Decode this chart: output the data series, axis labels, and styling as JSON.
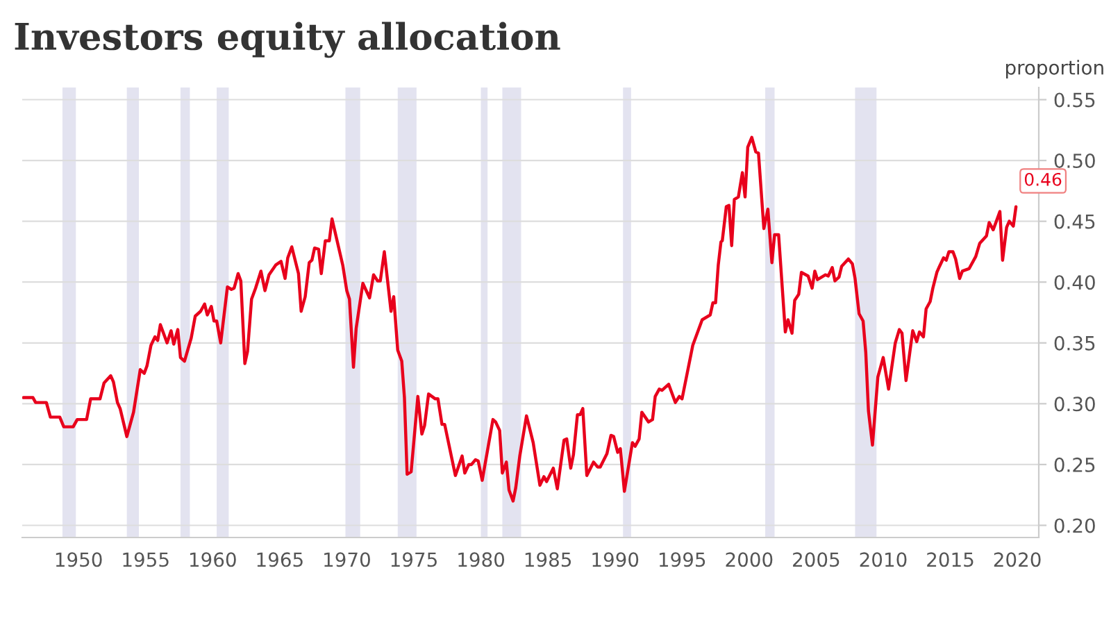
{
  "chart_data": {
    "type": "line",
    "title": "Investors equity allocation",
    "ylabel": "proportion",
    "x": [
      1945.9,
      1946.6,
      1946.8,
      1947.6,
      1947.9,
      1948.6,
      1948.9,
      1949.6,
      1949.9,
      1950.6,
      1950.9,
      1951.6,
      1951.9,
      1952.4,
      1952.6,
      1952.9,
      1953.1,
      1953.6,
      1954.1,
      1954.6,
      1954.9,
      1955.1,
      1955.4,
      1955.7,
      1955.9,
      1956.1,
      1956.6,
      1956.9,
      1957.1,
      1957.4,
      1957.6,
      1957.9,
      1958.4,
      1958.7,
      1959.1,
      1959.4,
      1959.6,
      1959.9,
      1960.1,
      1960.3,
      1960.6,
      1961.1,
      1961.4,
      1961.6,
      1961.9,
      1962.1,
      1962.4,
      1962.6,
      1962.9,
      1963.2,
      1963.6,
      1963.9,
      1964.2,
      1964.7,
      1965.1,
      1965.4,
      1965.6,
      1965.9,
      1966.4,
      1966.6,
      1966.9,
      1967.2,
      1967.4,
      1967.6,
      1967.9,
      1968.1,
      1968.4,
      1968.7,
      1968.9,
      1969.7,
      1970.0,
      1970.2,
      1970.5,
      1970.7,
      1971.2,
      1971.7,
      1972.0,
      1972.3,
      1972.5,
      1972.8,
      1973.3,
      1973.5,
      1973.8,
      1974.1,
      1974.3,
      1974.5,
      1974.8,
      1975.3,
      1975.6,
      1975.8,
      1976.1,
      1976.6,
      1976.8,
      1977.1,
      1977.3,
      1978.1,
      1978.6,
      1978.8,
      1979.1,
      1979.3,
      1979.6,
      1979.8,
      1980.1,
      1980.9,
      1981.1,
      1981.4,
      1981.6,
      1981.9,
      1982.1,
      1982.4,
      1982.6,
      1982.9,
      1983.4,
      1983.9,
      1984.4,
      1984.7,
      1984.9,
      1985.4,
      1985.7,
      1986.2,
      1986.4,
      1986.7,
      1986.9,
      1987.2,
      1987.4,
      1987.6,
      1987.9,
      1988.4,
      1988.7,
      1988.9,
      1989.4,
      1989.7,
      1989.9,
      1990.2,
      1990.4,
      1990.7,
      1991.3,
      1991.5,
      1991.8,
      1992.0,
      1992.5,
      1992.8,
      1993.0,
      1993.3,
      1993.5,
      1994.0,
      1994.5,
      1994.8,
      1995.0,
      1995.8,
      1996.5,
      1997.1,
      1997.3,
      1997.5,
      1997.7,
      1997.9,
      1998.0,
      1998.3,
      1998.5,
      1998.7,
      1998.9,
      1999.2,
      1999.5,
      1999.7,
      1999.9,
      2000.2,
      2000.5,
      2000.7,
      2001.1,
      2001.4,
      2001.7,
      2001.9,
      2002.2,
      2002.7,
      2002.9,
      2003.2,
      2003.4,
      2003.7,
      2003.9,
      2004.4,
      2004.7,
      2004.9,
      2005.1,
      2005.7,
      2005.9,
      2006.2,
      2006.4,
      2006.7,
      2006.9,
      2007.4,
      2007.7,
      2007.9,
      2008.2,
      2008.5,
      2008.7,
      2008.9,
      2009.2,
      2009.6,
      2010.0,
      2010.4,
      2010.9,
      2011.2,
      2011.4,
      2011.7,
      2012.2,
      2012.5,
      2012.7,
      2013.0,
      2013.2,
      2013.5,
      2013.7,
      2014.0,
      2014.2,
      2014.5,
      2014.7,
      2014.9,
      2015.2,
      2015.4,
      2015.7,
      2015.9,
      2016.4,
      2016.9,
      2017.2,
      2017.7,
      2017.9,
      2018.2,
      2018.4,
      2018.7,
      2018.9,
      2019.2,
      2019.4,
      2019.7,
      2019.9
    ],
    "series": [
      {
        "color": "#e8001c",
        "values": [
          0.305,
          0.305,
          0.301,
          0.301,
          0.289,
          0.289,
          0.281,
          0.281,
          0.287,
          0.287,
          0.304,
          0.304,
          0.317,
          0.323,
          0.318,
          0.301,
          0.296,
          0.273,
          0.293,
          0.328,
          0.325,
          0.331,
          0.348,
          0.355,
          0.352,
          0.365,
          0.35,
          0.36,
          0.349,
          0.361,
          0.338,
          0.335,
          0.354,
          0.372,
          0.376,
          0.382,
          0.373,
          0.38,
          0.368,
          0.368,
          0.35,
          0.396,
          0.394,
          0.395,
          0.407,
          0.401,
          0.333,
          0.343,
          0.386,
          0.395,
          0.409,
          0.393,
          0.406,
          0.414,
          0.417,
          0.403,
          0.42,
          0.429,
          0.407,
          0.376,
          0.388,
          0.416,
          0.418,
          0.428,
          0.427,
          0.407,
          0.434,
          0.434,
          0.452,
          0.414,
          0.393,
          0.386,
          0.33,
          0.362,
          0.399,
          0.387,
          0.406,
          0.401,
          0.401,
          0.425,
          0.376,
          0.388,
          0.344,
          0.335,
          0.305,
          0.242,
          0.244,
          0.306,
          0.275,
          0.282,
          0.308,
          0.304,
          0.304,
          0.283,
          0.283,
          0.241,
          0.257,
          0.243,
          0.25,
          0.25,
          0.254,
          0.253,
          0.237,
          0.287,
          0.285,
          0.278,
          0.243,
          0.252,
          0.229,
          0.22,
          0.231,
          0.257,
          0.29,
          0.268,
          0.233,
          0.24,
          0.236,
          0.247,
          0.23,
          0.27,
          0.271,
          0.247,
          0.258,
          0.291,
          0.291,
          0.296,
          0.241,
          0.252,
          0.248,
          0.248,
          0.259,
          0.274,
          0.273,
          0.26,
          0.263,
          0.228,
          0.268,
          0.265,
          0.271,
          0.293,
          0.285,
          0.287,
          0.306,
          0.312,
          0.311,
          0.316,
          0.301,
          0.306,
          0.304,
          0.348,
          0.369,
          0.373,
          0.383,
          0.383,
          0.414,
          0.433,
          0.434,
          0.462,
          0.463,
          0.43,
          0.468,
          0.47,
          0.49,
          0.47,
          0.511,
          0.519,
          0.507,
          0.506,
          0.444,
          0.46,
          0.416,
          0.439,
          0.439,
          0.359,
          0.369,
          0.358,
          0.385,
          0.39,
          0.408,
          0.405,
          0.395,
          0.409,
          0.402,
          0.406,
          0.405,
          0.412,
          0.401,
          0.404,
          0.413,
          0.419,
          0.415,
          0.403,
          0.374,
          0.368,
          0.342,
          0.294,
          0.266,
          0.322,
          0.338,
          0.312,
          0.35,
          0.361,
          0.358,
          0.319,
          0.36,
          0.351,
          0.359,
          0.355,
          0.378,
          0.384,
          0.395,
          0.408,
          0.413,
          0.42,
          0.418,
          0.425,
          0.425,
          0.419,
          0.403,
          0.409,
          0.411,
          0.421,
          0.432,
          0.438,
          0.449,
          0.443,
          0.449,
          0.458,
          0.418,
          0.445,
          0.45,
          0.446,
          0.462
        ]
      }
    ],
    "xlim": [
      1945.8,
      2021.6
    ],
    "ylim": [
      0.19,
      0.56
    ],
    "xticks": [
      1950,
      1955,
      1960,
      1965,
      1970,
      1975,
      1980,
      1985,
      1990,
      1995,
      2000,
      2005,
      2010,
      2015,
      2020
    ],
    "yticks": [
      {
        "value": 0.2,
        "label": "0.20"
      },
      {
        "value": 0.25,
        "label": "0.25"
      },
      {
        "value": 0.3,
        "label": "0.30"
      },
      {
        "value": 0.35,
        "label": "0.35"
      },
      {
        "value": 0.4,
        "label": "0.40"
      },
      {
        "value": 0.45,
        "label": "0.45"
      },
      {
        "value": 0.5,
        "label": "0.50"
      },
      {
        "value": 0.55,
        "label": "0.55"
      }
    ],
    "grid": "y",
    "legend": false,
    "bands": [
      {
        "axis": "x",
        "from": 1948.8,
        "to": 1949.8,
        "color": "#e3e3f0"
      },
      {
        "axis": "x",
        "from": 1953.6,
        "to": 1954.5,
        "color": "#e3e3f0"
      },
      {
        "axis": "x",
        "from": 1957.6,
        "to": 1958.3,
        "color": "#e3e3f0"
      },
      {
        "axis": "x",
        "from": 1960.3,
        "to": 1961.2,
        "color": "#e3e3f0"
      },
      {
        "axis": "x",
        "from": 1969.9,
        "to": 1971.0,
        "color": "#e3e3f0"
      },
      {
        "axis": "x",
        "from": 1973.8,
        "to": 1975.2,
        "color": "#e3e3f0"
      },
      {
        "axis": "x",
        "from": 1980.0,
        "to": 1980.5,
        "color": "#e3e3f0"
      },
      {
        "axis": "x",
        "from": 1981.6,
        "to": 1983.0,
        "color": "#e3e3f0"
      },
      {
        "axis": "x",
        "from": 1990.6,
        "to": 1991.2,
        "color": "#e3e3f0"
      },
      {
        "axis": "x",
        "from": 2001.2,
        "to": 2001.9,
        "color": "#e3e3f0"
      },
      {
        "axis": "x",
        "from": 2007.9,
        "to": 2009.5,
        "color": "#e3e3f0"
      }
    ],
    "annotations": [
      {
        "text": "0.46",
        "x": 2019.9,
        "y": 0.462
      }
    ]
  }
}
